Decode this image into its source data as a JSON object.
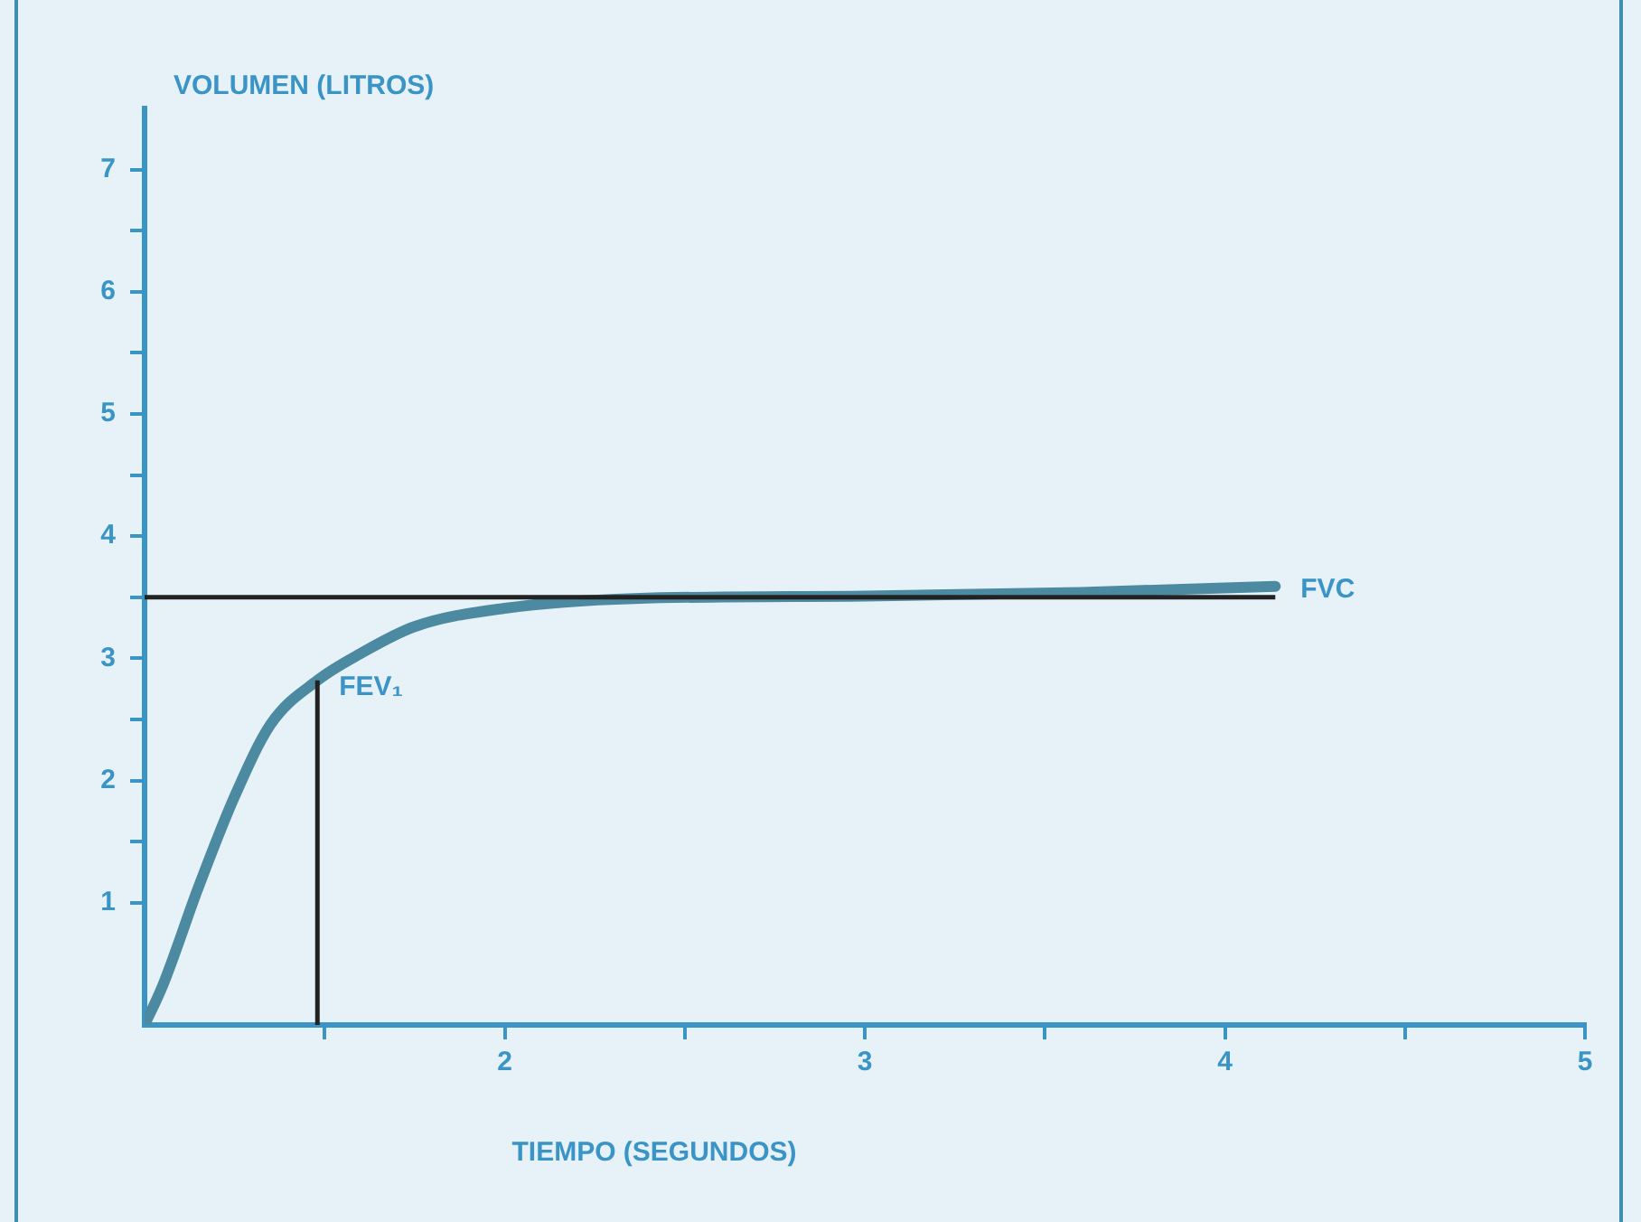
{
  "chart_data": {
    "type": "line",
    "xlabel": "TIEMPO (SEGUNDOS)",
    "ylabel": "VOLUMEN (LITROS)",
    "x": [
      1,
      1.05,
      1.15,
      1.25,
      1.35,
      1.48,
      1.6,
      1.75,
      2.0,
      2.36,
      3.0,
      3.6,
      4.14
    ],
    "series": [
      {
        "color": "#4b8aa0",
        "values": [
          0,
          0.32,
          1.13,
          1.87,
          2.46,
          2.82,
          3.04,
          3.26,
          3.41,
          3.49,
          3.51,
          3.54,
          3.59
        ]
      }
    ],
    "xlim": [
      1,
      5
    ],
    "xticks": [
      {
        "value": 1.5,
        "label": null
      },
      2,
      {
        "value": 2.5,
        "label": null
      },
      3,
      {
        "value": 3.5,
        "label": null
      },
      4,
      {
        "value": 4.5,
        "label": null
      },
      5
    ],
    "ylim": [
      0,
      7.5
    ],
    "yticks": [
      1,
      {
        "value": 1.5,
        "label": null
      },
      2,
      {
        "value": 2.5,
        "label": null
      },
      3,
      {
        "value": 3.5,
        "label": null
      },
      4,
      {
        "value": 4.5,
        "label": null
      },
      5,
      {
        "value": 5.5,
        "label": null
      },
      6,
      {
        "value": 6.5,
        "label": null
      },
      7
    ],
    "ref_lines": [
      {
        "axis": "y",
        "value": 3.5,
        "label": "FVC",
        "color": "#222222"
      },
      {
        "axis": "x",
        "value": 1.48,
        "label": "FEV₁",
        "color": "#222222"
      }
    ],
    "grid": false,
    "legend": false,
    "marker": "none",
    "line_style": "solid"
  }
}
